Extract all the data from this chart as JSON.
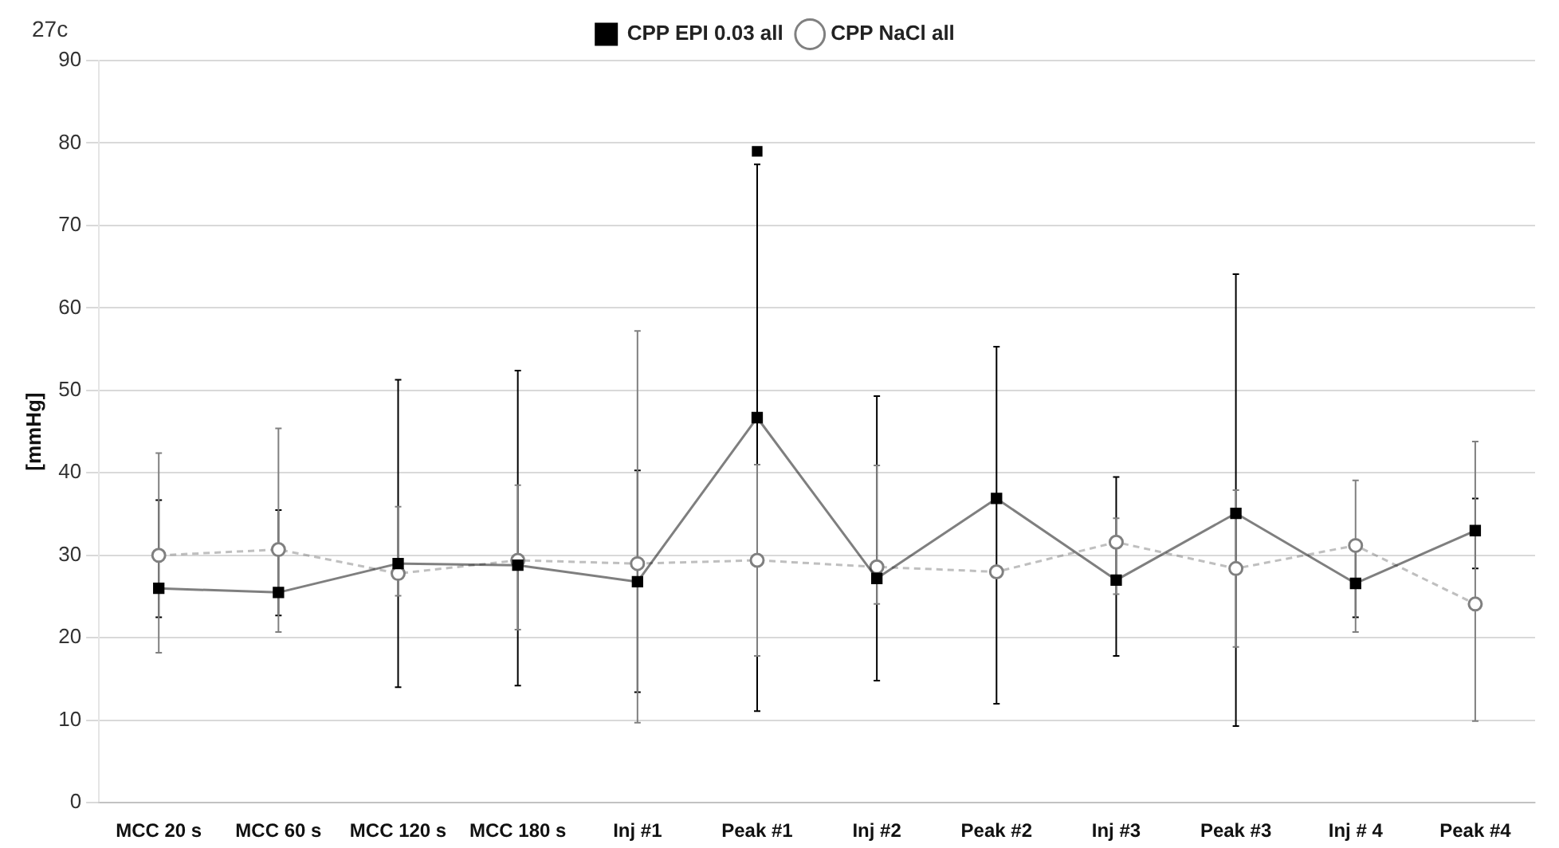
{
  "chart_data": {
    "type": "line",
    "ylabel": "[mmHg]",
    "annotations": [
      "27c"
    ],
    "categories": [
      "MCC 20 s",
      "MCC 60 s",
      "MCC 120 s",
      "MCC 180 s",
      "Inj #1",
      "Peak #1",
      "Inj #2",
      "Peak #2",
      "Inj #3",
      "Peak #3",
      "Inj # 4",
      "Peak #4"
    ],
    "series": [
      {
        "name": "CPP EPI 0.03 all",
        "color": "#000000",
        "marker": "square",
        "line_style": "solid",
        "values": [
          26,
          25.5,
          29,
          28.8,
          26.8,
          46.7,
          27.2,
          36.9,
          27.0,
          35.1,
          26.6,
          33.0
        ],
        "errors": [
          [
            22.5,
            36.7
          ],
          [
            22.7,
            35.5
          ],
          [
            14.0,
            51.3
          ],
          [
            14.2,
            52.4
          ],
          [
            13.4,
            40.3
          ],
          [
            11.1,
            77.4
          ],
          [
            14.8,
            49.3
          ],
          [
            12.0,
            55.3
          ],
          [
            17.8,
            39.5
          ],
          [
            9.3,
            64.1
          ],
          4.1,
          [
            28.4,
            36.9
          ]
        ]
      },
      {
        "name": "CPP NaCl all",
        "color": "#808080",
        "marker": "circle",
        "line_style": "dashed",
        "values": [
          30,
          30.7,
          27.8,
          29.4,
          29.0,
          29.4,
          28.6,
          28.0,
          31.6,
          28.4,
          31.2,
          24.1
        ],
        "errors": [
          [
            18.2,
            42.4
          ],
          [
            20.7,
            45.4
          ],
          [
            25.1,
            35.9
          ],
          [
            21.0,
            38.5
          ],
          [
            9.7,
            57.2
          ],
          11.6,
          [
            24.1,
            40.9
          ],
          null,
          [
            25.3,
            34.5
          ],
          9.5,
          [
            20.7,
            39.1
          ],
          [
            9.9,
            43.8
          ]
        ]
      },
      {
        "type": "scatter",
        "color": "#000000",
        "marker": "square",
        "x": [
          "Peak #1"
        ],
        "values": [
          79.0
        ]
      }
    ],
    "ylim": [
      0,
      90
    ],
    "yticks": [
      0,
      10,
      20,
      30,
      40,
      50,
      60,
      70,
      80,
      90
    ],
    "grid": "y",
    "legend": "top"
  }
}
